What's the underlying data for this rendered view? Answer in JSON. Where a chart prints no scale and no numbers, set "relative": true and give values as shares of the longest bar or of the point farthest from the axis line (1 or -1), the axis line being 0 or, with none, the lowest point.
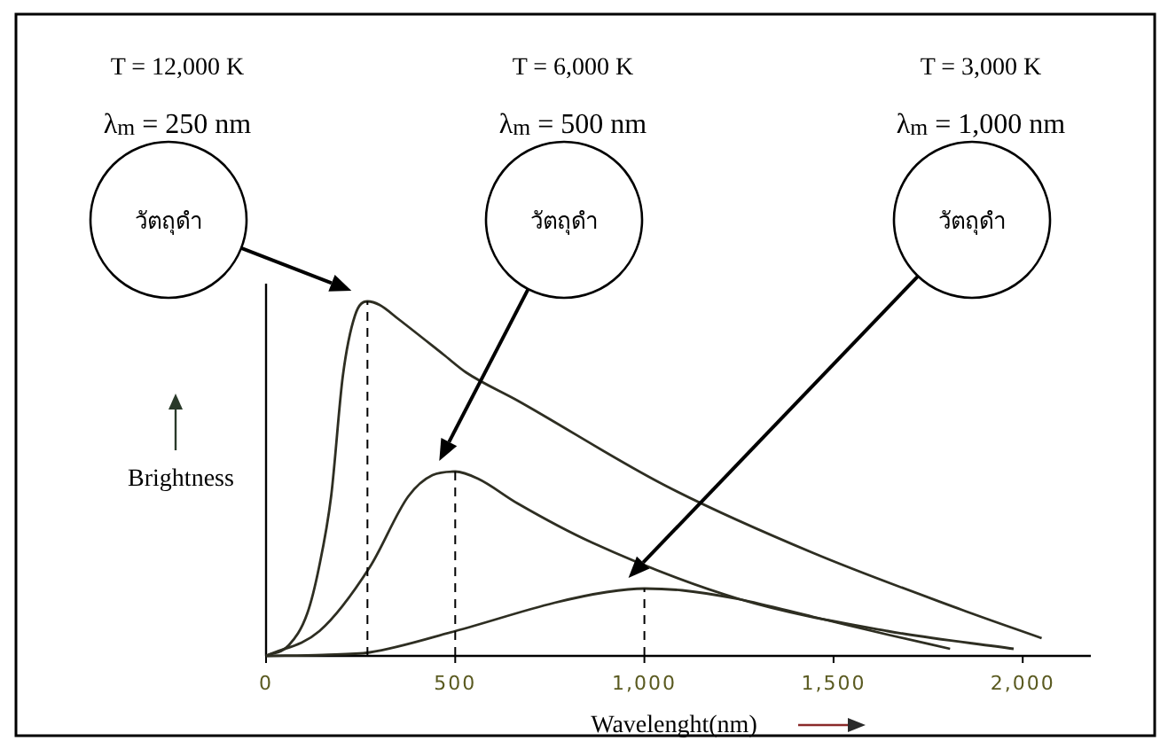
{
  "chart_data": {
    "type": "line",
    "relative": true,
    "xlabel": "Wavelenght(nm)",
    "ylabel": "Brightness",
    "xlim": [
      0,
      2180
    ],
    "xticks": [
      0,
      500,
      {
        "value": 1000,
        "label": "1,000"
      },
      {
        "value": 1500,
        "label": "1,500"
      },
      {
        "value": 2000,
        "label": "2,000"
      }
    ],
    "grid": false,
    "line_style": "solid",
    "series": [
      {
        "color": "#2e2e22",
        "x": [
          0,
          60,
          109,
          140,
          172,
          203,
          235,
          268,
          300,
          350,
          469,
          528,
          665,
          1056,
          1447,
          1839,
          2050
        ],
        "values": [
          0,
          0.03,
          0.12,
          0.25,
          0.45,
          0.79,
          0.96,
          1,
          0.99,
          0.95,
          0.85,
          0.8,
          0.72,
          0.48,
          0.29,
          0.13,
          0.05
        ]
      },
      {
        "color": "#2e2e22",
        "x": [
          0,
          141,
          274,
          376,
          440,
          500,
          560,
          665,
          861,
          1252,
          1643,
          1976
        ],
        "values": [
          0,
          0.07,
          0.25,
          0.45,
          0.51,
          0.52,
          0.5,
          0.43,
          0.32,
          0.16,
          0.07,
          0.02
        ]
      },
      {
        "color": "#2e2e22",
        "x": [
          0,
          150,
          274,
          500,
          763,
          900,
          1000,
          1100,
          1250,
          1447,
          1643,
          1808
        ],
        "values": [
          0,
          0.003,
          0.01,
          0.07,
          0.15,
          0.18,
          0.19,
          0.185,
          0.16,
          0.11,
          0.06,
          0.02
        ]
      }
    ],
    "ref_lines": [
      {
        "axis": "x",
        "value": 268,
        "line_style": "dashed",
        "color": "#000000"
      },
      {
        "axis": "x",
        "value": 500,
        "line_style": "dashed",
        "color": "#000000"
      },
      {
        "axis": "x",
        "value": 1000,
        "line_style": "dashed",
        "color": "#000000"
      }
    ],
    "annotations": [
      "T = 12,000 K",
      "λ$_{m}$ = 250 nm",
      "วัตถุดำ",
      "T = 6,000 K",
      "λ$_{m}$ = 500 nm",
      "วัตถุดำ",
      "T = 3,000 K",
      "λ$_{m}$ = 1,000 nm",
      "วัตถุดำ"
    ]
  }
}
